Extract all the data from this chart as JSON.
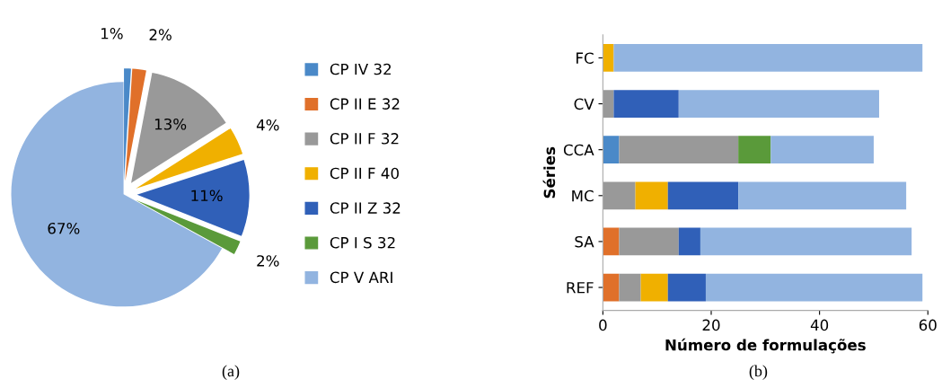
{
  "chart_data": [
    {
      "type": "pie",
      "categories": [
        "CP IV 32",
        "CP II E 32",
        "CP II F 32",
        "CP II F 40",
        "CP II Z 32",
        "CP I S 32",
        "CP V ARI"
      ],
      "values": [
        1,
        2,
        13,
        4,
        11,
        2,
        67
      ],
      "colors": [
        "#4a89c8",
        "#e0702a",
        "#999999",
        "#f0b000",
        "#3060b8",
        "#5a9a3a",
        "#92b4e0"
      ],
      "value_labels": [
        "1%",
        "2%",
        "13%",
        "4%",
        "11%",
        "2%",
        "67%"
      ],
      "legend": "right",
      "annotations": [
        "(a)"
      ]
    },
    {
      "type": "bar",
      "orientation": "horizontal",
      "stacked": true,
      "categories": [
        "FC",
        "CV",
        "CCA",
        "MC",
        "SA",
        "REF"
      ],
      "xlabel": "Número de formulações",
      "ylabel": "Séries",
      "xlim": [
        0,
        60
      ],
      "xticks": [
        0,
        20,
        40,
        60
      ],
      "grid": false,
      "annotations": [
        "(b)"
      ],
      "series": [
        {
          "color": "#4a89c8",
          "values": [
            0,
            0,
            3,
            0,
            0,
            0
          ]
        },
        {
          "color": "#e0702a",
          "values": [
            0,
            0,
            0,
            0,
            3,
            3
          ]
        },
        {
          "color": "#999999",
          "values": [
            0,
            2,
            22,
            6,
            11,
            4
          ]
        },
        {
          "color": "#f0b000",
          "values": [
            2,
            0,
            0,
            6,
            0,
            5
          ]
        },
        {
          "color": "#3060b8",
          "values": [
            0,
            12,
            0,
            13,
            4,
            7
          ]
        },
        {
          "color": "#5a9a3a",
          "values": [
            0,
            0,
            6,
            0,
            0,
            0
          ]
        },
        {
          "color": "#92b4e0",
          "values": [
            57,
            37,
            19,
            31,
            39,
            40
          ]
        }
      ]
    }
  ]
}
